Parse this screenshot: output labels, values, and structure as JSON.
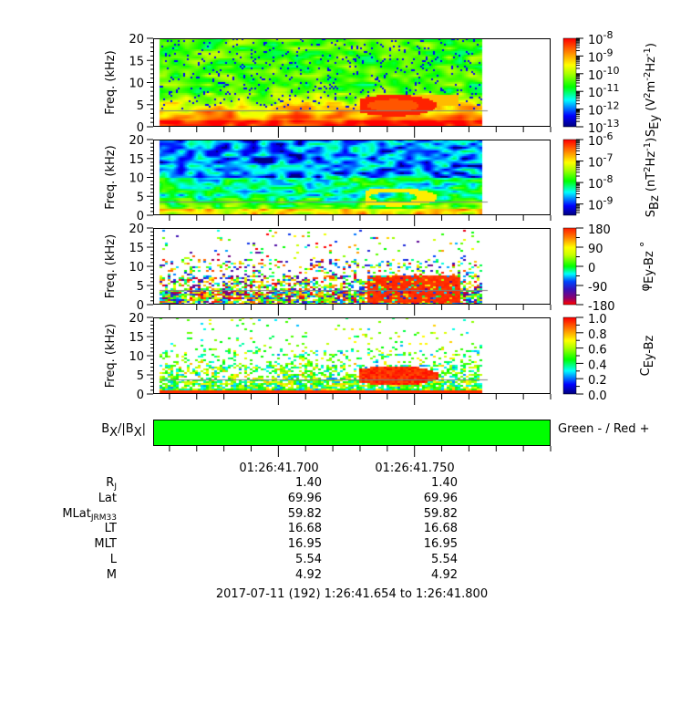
{
  "chart_data": [
    {
      "type": "heatmap",
      "ylabel": "Freq. (kHz)",
      "ylim": [
        0,
        20
      ],
      "yticks": [
        "0",
        "5",
        "10",
        "15",
        "20"
      ],
      "xlim": [
        "01:26:41.654",
        "01:26:41.800"
      ],
      "colorscale": "log",
      "colorbar": {
        "label_parts": [
          {
            "t": "S"
          },
          {
            "sub": "Ey"
          },
          {
            "t": " (V"
          },
          {
            "sup": "2"
          },
          {
            "t": "m"
          },
          {
            "sup": "-2"
          },
          {
            "t": "Hz"
          },
          {
            "sup": "-1"
          },
          {
            "t": ")"
          }
        ],
        "range": [
          1e-13,
          1e-08
        ],
        "ticks": [
          {
            "base": "10",
            "exp": "-8"
          },
          {
            "base": "10",
            "exp": "-9"
          },
          {
            "base": "10",
            "exp": "-10"
          },
          {
            "base": "10",
            "exp": "-11"
          },
          {
            "base": "10",
            "exp": "-12"
          },
          {
            "base": "10",
            "exp": "-13"
          }
        ]
      },
      "reference_line_khz": 3.7
    },
    {
      "type": "heatmap",
      "ylabel": "Freq. (kHz)",
      "ylim": [
        0,
        20
      ],
      "yticks": [
        "0",
        "5",
        "10",
        "15",
        "20"
      ],
      "xlim": [
        "01:26:41.654",
        "01:26:41.800"
      ],
      "colorscale": "log",
      "colorbar": {
        "label_parts": [
          {
            "t": "S"
          },
          {
            "sub": "Bz"
          },
          {
            "t": " (nT"
          },
          {
            "sup": "2"
          },
          {
            "t": "Hz"
          },
          {
            "sup": "-1"
          },
          {
            "t": ")"
          }
        ],
        "range": [
          3e-10,
          1e-06
        ],
        "ticks": [
          {
            "base": "10",
            "exp": "-6"
          },
          {
            "base": "10",
            "exp": "-7"
          },
          {
            "base": "10",
            "exp": "-8"
          },
          {
            "base": "10",
            "exp": "-9"
          }
        ]
      },
      "reference_line_khz": 3.7
    },
    {
      "type": "heatmap",
      "ylabel": "Freq. (kHz)",
      "ylim": [
        0,
        20
      ],
      "yticks": [
        "0",
        "5",
        "10",
        "15",
        "20"
      ],
      "xlim": [
        "01:26:41.654",
        "01:26:41.800"
      ],
      "colorscale": "linear",
      "colorbar": {
        "label_parts": [
          {
            "t": "φ"
          },
          {
            "sub": "Ey-Bz"
          },
          {
            "t": " °"
          }
        ],
        "range": [
          -180,
          180
        ],
        "ticks": [
          {
            "base": "180"
          },
          {
            "base": "90"
          },
          {
            "base": "0"
          },
          {
            "base": "-90"
          },
          {
            "base": "-180"
          }
        ]
      },
      "reference_line_khz": 3.7
    },
    {
      "type": "heatmap",
      "ylabel": "Freq. (kHz)",
      "ylim": [
        0,
        20
      ],
      "yticks": [
        "0",
        "5",
        "10",
        "15",
        "20"
      ],
      "xlim": [
        "01:26:41.654",
        "01:26:41.800"
      ],
      "colorscale": "linear",
      "colorbar": {
        "label_parts": [
          {
            "t": "C"
          },
          {
            "sub": "Ey-Bz"
          }
        ],
        "range": [
          0,
          1
        ],
        "ticks": [
          {
            "base": "1.0"
          },
          {
            "base": "0.8"
          },
          {
            "base": "0.6"
          },
          {
            "base": "0.4"
          },
          {
            "base": "0.2"
          },
          {
            "base": "0.0"
          }
        ]
      },
      "reference_line_khz": 3.7
    }
  ],
  "bx_bar": {
    "label_parts": [
      {
        "t": "B"
      },
      {
        "sub": "X"
      },
      {
        "t": "/|B"
      },
      {
        "sub": "X"
      },
      {
        "t": "|"
      }
    ],
    "legend": "Green - / Red +",
    "fill_color": "#00ff00",
    "state": "negative"
  },
  "colors": {
    "bx_negative": "#00ff00",
    "bx_positive": "#ff0000",
    "reference_line": "#808080"
  },
  "ephemeris": {
    "times": [
      "01:26:41.700",
      "01:26:41.750"
    ],
    "rows": [
      {
        "label": "R",
        "sub": "J",
        "values": [
          "1.40",
          "1.40"
        ]
      },
      {
        "label": "Lat",
        "sub": "",
        "values": [
          "69.96",
          "69.96"
        ]
      },
      {
        "label": "MLat",
        "sub": "JRM33",
        "values": [
          "59.82",
          "59.82"
        ]
      },
      {
        "label": "LT",
        "sub": "",
        "values": [
          "16.68",
          "16.68"
        ]
      },
      {
        "label": "MLT",
        "sub": "",
        "values": [
          "16.95",
          "16.95"
        ]
      },
      {
        "label": "L",
        "sub": "",
        "values": [
          "5.54",
          "5.54"
        ]
      },
      {
        "label": "M",
        "sub": "",
        "values": [
          "4.92",
          "4.92"
        ]
      }
    ]
  },
  "footer": "2017-07-11 (192) 1:26:41.654 to 1:26:41.800"
}
